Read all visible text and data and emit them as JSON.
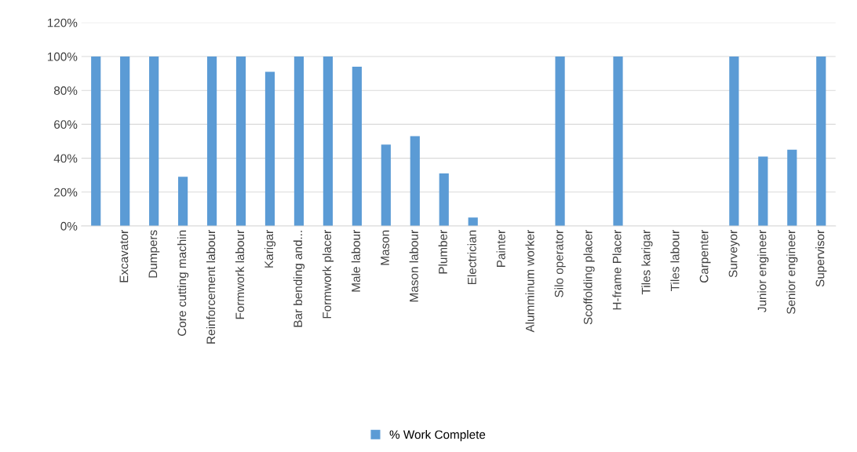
{
  "chart_data": {
    "type": "bar",
    "categories": [
      null,
      "Excavator",
      "Dumpers",
      "Core cutting machin",
      "Reinforcement labour",
      "Formwork labour",
      "Karigar",
      "Bar bending and...",
      "Formwork placer",
      "Male labour",
      "Mason",
      "Mason labour",
      "Plumber",
      "Electrician",
      "Painter",
      "Alumminum worker",
      "Silo operator",
      "Scoffolding placer",
      "H-frame Placer",
      "Tiles karigar",
      "Tiles labour",
      "Carpenter",
      "Surveyor",
      "Junior engineer",
      "Senior engineer",
      "Supervisor"
    ],
    "series": [
      {
        "name": "% Work Complete",
        "color": "#5b9bd5",
        "values": [
          100,
          100,
          100,
          29,
          100,
          100,
          91,
          100,
          100,
          94,
          48,
          53,
          31,
          5,
          0,
          0,
          100,
          0,
          100,
          0,
          0,
          0,
          100,
          41,
          45,
          100
        ]
      }
    ],
    "ylim": [
      0,
      120
    ],
    "yticks": [
      {
        "value": 0,
        "label": "0%"
      },
      {
        "value": 20,
        "label": "20%"
      },
      {
        "value": 40,
        "label": "40%"
      },
      {
        "value": 60,
        "label": "60%"
      },
      {
        "value": 80,
        "label": "80%"
      },
      {
        "value": 100,
        "label": "100%"
      },
      {
        "value": 120,
        "label": "120%"
      }
    ],
    "grid": "y",
    "legend": "bottom"
  }
}
